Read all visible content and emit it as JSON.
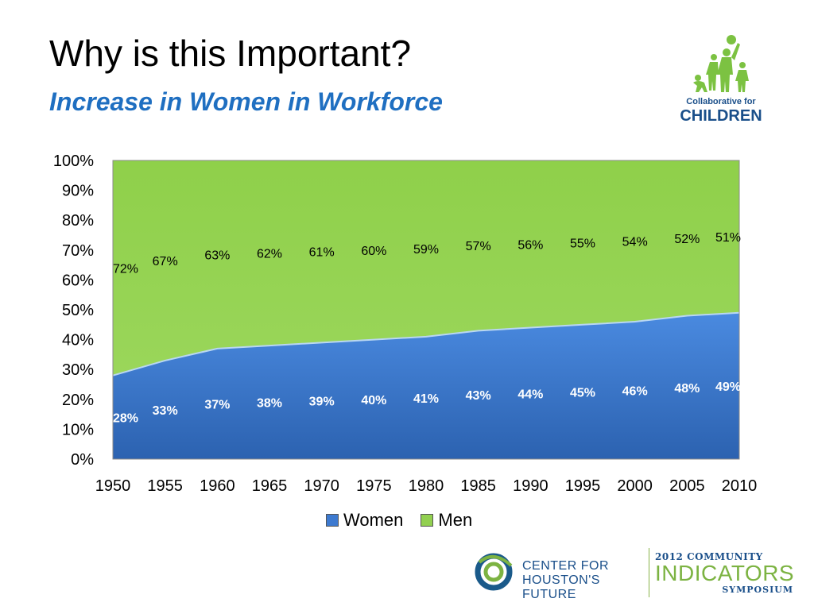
{
  "slide": {
    "title": "Why is this Important?",
    "subtitle": "Increase in Women in Workforce"
  },
  "colors": {
    "women": "#3d7ad0",
    "men": "#92d050",
    "subtitle": "#1f6fc1"
  },
  "logos": {
    "cfc_line1": "Collaborative for",
    "cfc_line2": "CHILDREN",
    "chf_line1": "CENTER FOR",
    "chf_line2": "HOUSTON'S FUTURE",
    "cis_line1": "2012 COMMUNITY",
    "cis_line2": "INDICATORS",
    "cis_line3": "SYMPOSIUM"
  },
  "chart_data": {
    "type": "area",
    "stacked": true,
    "x": [
      "1950",
      "1955",
      "1960",
      "1965",
      "1970",
      "1975",
      "1980",
      "1985",
      "1990",
      "1995",
      "2000",
      "2005",
      "2010"
    ],
    "series": [
      {
        "name": "Women",
        "values": [
          28,
          33,
          37,
          38,
          39,
          40,
          41,
          43,
          44,
          45,
          46,
          48,
          49
        ],
        "labels": [
          "28%",
          "33%",
          "37%",
          "38%",
          "39%",
          "40%",
          "41%",
          "43%",
          "44%",
          "45%",
          "46%",
          "48%",
          "49%"
        ]
      },
      {
        "name": "Men",
        "values": [
          72,
          67,
          63,
          62,
          61,
          60,
          59,
          57,
          56,
          55,
          54,
          52,
          51
        ],
        "labels": [
          "72%",
          "67%",
          "63%",
          "62%",
          "61%",
          "60%",
          "59%",
          "57%",
          "56%",
          "55%",
          "54%",
          "52%",
          "51%"
        ]
      }
    ],
    "y_ticks": [
      "0%",
      "10%",
      "20%",
      "30%",
      "40%",
      "50%",
      "60%",
      "70%",
      "80%",
      "90%",
      "100%"
    ],
    "ylim": [
      0,
      100
    ],
    "legend": "bottom"
  }
}
